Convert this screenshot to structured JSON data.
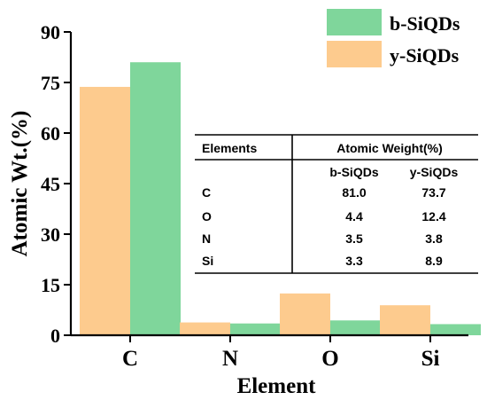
{
  "chart_data": {
    "type": "bar",
    "categories": [
      "C",
      "N",
      "O",
      "Si"
    ],
    "series": [
      {
        "name": "y-SiQDs",
        "color": "#FDCB8E",
        "values": [
          73.7,
          3.8,
          12.4,
          8.9
        ]
      },
      {
        "name": "b-SiQDs",
        "color": "#7FD69B",
        "values": [
          81.0,
          3.5,
          4.4,
          3.3
        ]
      }
    ],
    "xlabel": "Element",
    "ylabel": "Atomic Wt.(%)",
    "ylim": [
      0,
      90
    ],
    "yticks": [
      0,
      15,
      30,
      45,
      60,
      75,
      90
    ],
    "legend": {
      "placement": "top-right",
      "entries": [
        {
          "name": "b-SiQDs",
          "color": "#7FD69B"
        },
        {
          "name": "y-SiQDs",
          "color": "#FDCB8E"
        }
      ]
    },
    "grid": false
  },
  "table": {
    "col_header": "Elements",
    "group_header": "Atomic Weight(%)",
    "sub_headers": [
      "b-SiQDs",
      "y-SiQDs"
    ],
    "rows": [
      {
        "element": "C",
        "b": "81.0",
        "y": "73.7"
      },
      {
        "element": "O",
        "b": "4.4",
        "y": "12.4"
      },
      {
        "element": "N",
        "b": "3.5",
        "y": "3.8"
      },
      {
        "element": "Si",
        "b": "3.3",
        "y": "8.9"
      }
    ]
  }
}
